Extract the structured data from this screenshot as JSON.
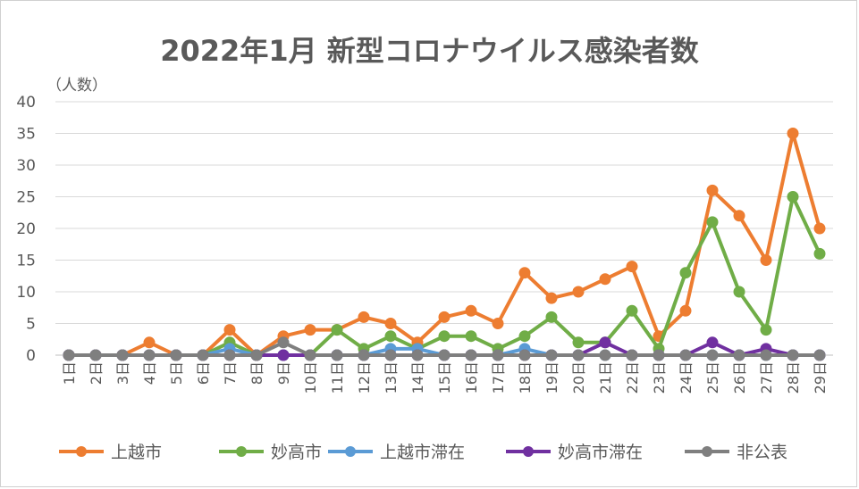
{
  "chart_data": {
    "type": "line",
    "title": "2022年1月 新型コロナウイルス感染者数",
    "ylabel": "（人数）",
    "ylim": [
      0,
      40
    ],
    "yticks": [
      0,
      5,
      10,
      15,
      20,
      25,
      30,
      35,
      40
    ],
    "grid": true,
    "legend_position": "bottom",
    "categories": [
      "1日",
      "2日",
      "3日",
      "4日",
      "5日",
      "6日",
      "7日",
      "8日",
      "9日",
      "10日",
      "11日",
      "12日",
      "13日",
      "14日",
      "15日",
      "16日",
      "17日",
      "18日",
      "19日",
      "20日",
      "21日",
      "22日",
      "23日",
      "24日",
      "25日",
      "26日",
      "27日",
      "28日",
      "29日"
    ],
    "series": [
      {
        "name": "上越市",
        "color": "#ed7d31",
        "values": [
          0,
          0,
          0,
          2,
          0,
          0,
          4,
          0,
          3,
          4,
          4,
          6,
          5,
          2,
          6,
          7,
          5,
          13,
          9,
          10,
          12,
          14,
          3,
          7,
          26,
          22,
          15,
          35,
          20
        ]
      },
      {
        "name": "妙高市",
        "color": "#70ad47",
        "values": [
          0,
          0,
          0,
          0,
          0,
          0,
          2,
          0,
          0,
          0,
          4,
          1,
          3,
          1,
          3,
          3,
          1,
          3,
          6,
          2,
          2,
          7,
          1,
          13,
          21,
          10,
          4,
          25,
          16
        ]
      },
      {
        "name": "上越市滞在",
        "color": "#5b9bd5",
        "values": [
          0,
          0,
          0,
          0,
          0,
          0,
          1,
          0,
          0,
          0,
          0,
          0,
          1,
          1,
          0,
          0,
          0,
          1,
          0,
          0,
          0,
          0,
          0,
          0,
          0,
          0,
          0,
          0,
          0
        ]
      },
      {
        "name": "妙高市滞在",
        "color": "#7030a0",
        "values": [
          0,
          0,
          0,
          0,
          0,
          0,
          0,
          0,
          0,
          0,
          0,
          0,
          0,
          0,
          0,
          0,
          0,
          0,
          0,
          0,
          2,
          0,
          0,
          0,
          2,
          0,
          1,
          0,
          0
        ]
      },
      {
        "name": "非公表",
        "color": "#7f7f7f",
        "values": [
          0,
          0,
          0,
          0,
          0,
          0,
          0,
          0,
          2,
          0,
          0,
          0,
          0,
          0,
          0,
          0,
          0,
          0,
          0,
          0,
          0,
          0,
          0,
          0,
          0,
          0,
          0,
          0,
          0
        ]
      }
    ]
  }
}
